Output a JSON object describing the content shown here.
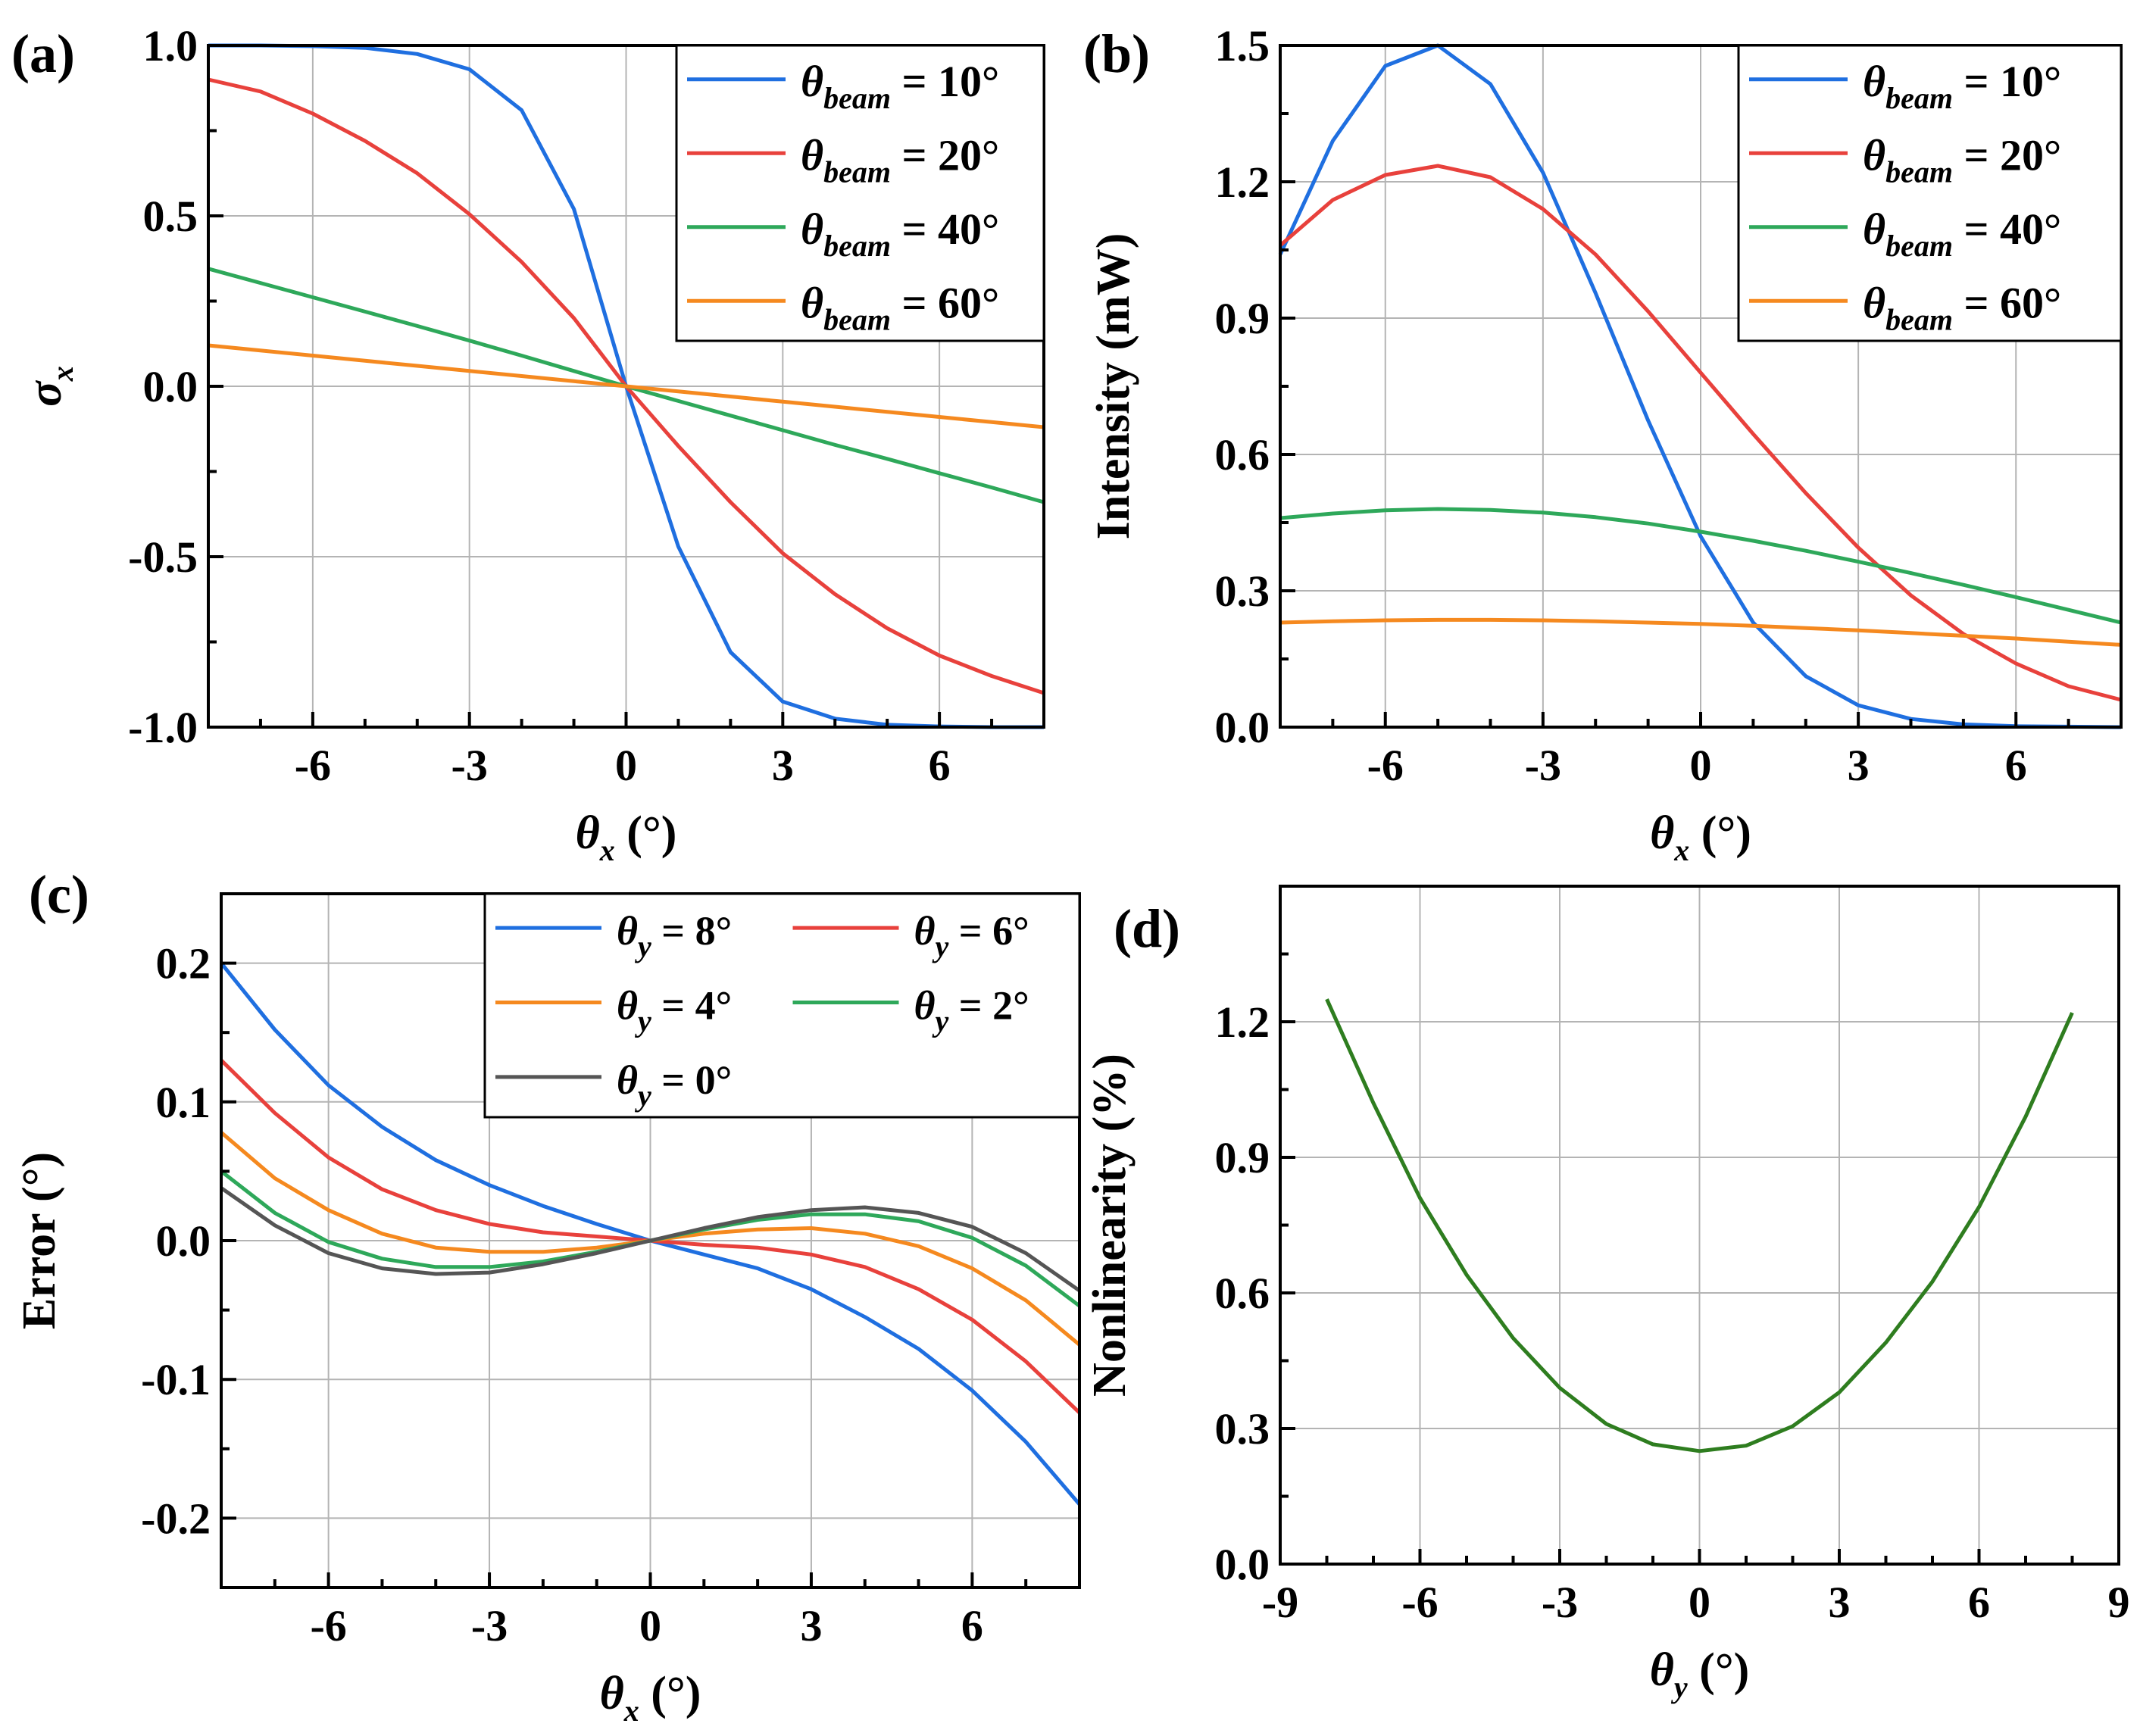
{
  "chart_data": [
    {
      "id": "a",
      "panel_label": "(a)",
      "type": "line",
      "xlabel": "θx (°)",
      "xlabel_parts": {
        "symbol": "θ",
        "subscript": "x",
        "unit": " (°)"
      },
      "ylabel": "σx",
      "ylabel_parts": {
        "symbol": "σ",
        "subscript": "x"
      },
      "xlim": [
        -8,
        8
      ],
      "ylim": [
        -1,
        1
      ],
      "xticks": [
        -6,
        -3,
        0,
        3,
        6
      ],
      "xtick_labels": [
        "-6",
        "-3",
        "0",
        "3",
        "6"
      ],
      "yticks": [
        -1,
        -0.5,
        0,
        0.5,
        1
      ],
      "ytick_labels": [
        "-1.0",
        "-0.5",
        "0.0",
        "0.5",
        "1.0"
      ],
      "grid": true,
      "legend_position": "top-right",
      "x": [
        -8,
        -7,
        -6,
        -5,
        -4,
        -3,
        -2,
        -1,
        0,
        1,
        2,
        3,
        4,
        5,
        6,
        7,
        8
      ],
      "series": [
        {
          "name": "θbeam = 10°",
          "label_symbol": "θ",
          "label_sub": "beam",
          "label_rest": " = 10°",
          "color": "#1f6fe0",
          "values": [
            1.0,
            1.0,
            0.998,
            0.993,
            0.975,
            0.93,
            0.81,
            0.52,
            0,
            -0.47,
            -0.78,
            -0.925,
            -0.975,
            -0.993,
            -0.998,
            -1.0,
            -1.0
          ]
        },
        {
          "name": "θbeam = 20°",
          "label_symbol": "θ",
          "label_sub": "beam",
          "label_rest": " = 20°",
          "color": "#e8413c",
          "values": [
            0.9,
            0.865,
            0.8,
            0.72,
            0.625,
            0.505,
            0.365,
            0.2,
            0,
            -0.175,
            -0.34,
            -0.49,
            -0.61,
            -0.71,
            -0.79,
            -0.85,
            -0.9
          ]
        },
        {
          "name": "θbeam = 40°",
          "label_symbol": "θ",
          "label_sub": "beam",
          "label_rest": " = 40°",
          "color": "#2ea85a",
          "values": [
            0.345,
            0.303,
            0.261,
            0.219,
            0.177,
            0.134,
            0.09,
            0.045,
            0,
            -0.043,
            -0.086,
            -0.129,
            -0.172,
            -0.213,
            -0.255,
            -0.297,
            -0.34
          ]
        },
        {
          "name": "θbeam = 60°",
          "label_symbol": "θ",
          "label_sub": "beam",
          "label_rest": " = 60°",
          "color": "#f5891f",
          "values": [
            0.12,
            0.105,
            0.09,
            0.075,
            0.06,
            0.045,
            0.03,
            0.015,
            0,
            -0.015,
            -0.03,
            -0.045,
            -0.06,
            -0.075,
            -0.09,
            -0.105,
            -0.12
          ]
        }
      ]
    },
    {
      "id": "b",
      "panel_label": "(b)",
      "type": "line",
      "xlabel": "θx (°)",
      "xlabel_parts": {
        "symbol": "θ",
        "subscript": "x",
        "unit": " (°)"
      },
      "ylabel": "Intensity (mW)",
      "xlim": [
        -8,
        8
      ],
      "ylim": [
        0,
        1.5
      ],
      "xticks": [
        -6,
        -3,
        0,
        3,
        6
      ],
      "xtick_labels": [
        "-6",
        "-3",
        "0",
        "3",
        "6"
      ],
      "yticks": [
        0,
        0.3,
        0.6,
        0.9,
        1.2,
        1.5
      ],
      "ytick_labels": [
        "0.0",
        "0.3",
        "0.6",
        "0.9",
        "1.2",
        "1.5"
      ],
      "grid": true,
      "legend_position": "top-right",
      "x": [
        -8,
        -7,
        -6,
        -5,
        -4,
        -3,
        -2,
        -1,
        0,
        1,
        2,
        3,
        4,
        5,
        6,
        7,
        8
      ],
      "series": [
        {
          "name": "θbeam = 10°",
          "label_symbol": "θ",
          "label_sub": "beam",
          "label_rest": " = 10°",
          "color": "#1f6fe0",
          "values": [
            1.04,
            1.29,
            1.455,
            1.5,
            1.415,
            1.22,
            0.955,
            0.675,
            0.42,
            0.23,
            0.112,
            0.048,
            0.018,
            0.006,
            0.002,
            0.001,
            0.0
          ]
        },
        {
          "name": "θbeam = 20°",
          "label_symbol": "θ",
          "label_sub": "beam",
          "label_rest": " = 20°",
          "color": "#e8413c",
          "values": [
            1.06,
            1.16,
            1.215,
            1.235,
            1.21,
            1.14,
            1.04,
            0.915,
            0.78,
            0.645,
            0.515,
            0.395,
            0.29,
            0.205,
            0.14,
            0.09,
            0.06
          ]
        },
        {
          "name": "θbeam = 40°",
          "label_symbol": "θ",
          "label_sub": "beam",
          "label_rest": " = 40°",
          "color": "#2ea85a",
          "values": [
            0.46,
            0.47,
            0.477,
            0.48,
            0.478,
            0.472,
            0.462,
            0.448,
            0.43,
            0.41,
            0.388,
            0.364,
            0.339,
            0.313,
            0.286,
            0.258,
            0.23
          ]
        },
        {
          "name": "θbeam = 60°",
          "label_symbol": "θ",
          "label_sub": "beam",
          "label_rest": " = 60°",
          "color": "#f5891f",
          "values": [
            0.23,
            0.233,
            0.235,
            0.236,
            0.236,
            0.235,
            0.233,
            0.23,
            0.227,
            0.223,
            0.218,
            0.213,
            0.207,
            0.201,
            0.195,
            0.188,
            0.181
          ]
        }
      ]
    },
    {
      "id": "c",
      "panel_label": "(c)",
      "type": "line",
      "xlabel": "θx (°)",
      "xlabel_parts": {
        "symbol": "θ",
        "subscript": "x",
        "unit": " (°)"
      },
      "ylabel": "Error (°)",
      "xlim": [
        -8,
        8
      ],
      "ylim": [
        -0.25,
        0.25
      ],
      "xticks": [
        -6,
        -3,
        0,
        3,
        6
      ],
      "xtick_labels": [
        "-6",
        "-3",
        "0",
        "3",
        "6"
      ],
      "yticks": [
        -0.2,
        -0.1,
        0,
        0.1,
        0.2
      ],
      "ytick_labels": [
        "-0.2",
        "-0.1",
        "0.0",
        "0.1",
        "0.2"
      ],
      "grid": true,
      "legend_position": "top-right",
      "x": [
        -8,
        -7,
        -6,
        -5,
        -4,
        -3,
        -2,
        -1,
        0,
        1,
        2,
        3,
        4,
        5,
        6,
        7,
        8
      ],
      "series": [
        {
          "name": "θy = 8°",
          "label_symbol": "θ",
          "label_sub": "y",
          "label_rest": " = 8°",
          "color": "#1f6fe0",
          "values": [
            0.2,
            0.152,
            0.112,
            0.082,
            0.058,
            0.04,
            0.025,
            0.012,
            0,
            -0.01,
            -0.02,
            -0.035,
            -0.055,
            -0.078,
            -0.108,
            -0.145,
            -0.19
          ]
        },
        {
          "name": "θy = 6°",
          "label_symbol": "θ",
          "label_sub": "y",
          "label_rest": " = 6°",
          "color": "#e8413c",
          "values": [
            0.13,
            0.092,
            0.06,
            0.037,
            0.022,
            0.012,
            0.006,
            0.003,
            0,
            -0.003,
            -0.005,
            -0.01,
            -0.019,
            -0.035,
            -0.057,
            -0.087,
            -0.124
          ]
        },
        {
          "name": "θy = 4°",
          "label_symbol": "θ",
          "label_sub": "y",
          "label_rest": " = 4°",
          "color": "#f5891f",
          "values": [
            0.078,
            0.045,
            0.022,
            0.005,
            -0.005,
            -0.008,
            -0.008,
            -0.005,
            0,
            0.005,
            0.008,
            0.009,
            0.005,
            -0.004,
            -0.02,
            -0.043,
            -0.075
          ]
        },
        {
          "name": "θy = 2°",
          "label_symbol": "θ",
          "label_sub": "y",
          "label_rest": " = 2°",
          "color": "#2ea85a",
          "values": [
            0.05,
            0.02,
            -0.001,
            -0.013,
            -0.019,
            -0.019,
            -0.015,
            -0.008,
            0,
            0.008,
            0.015,
            0.019,
            0.019,
            0.014,
            0.002,
            -0.018,
            -0.047
          ]
        },
        {
          "name": "θy = 0°",
          "label_symbol": "θ",
          "label_sub": "y",
          "label_rest": " = 0°",
          "color": "#555555",
          "values": [
            0.038,
            0.011,
            -0.009,
            -0.02,
            -0.024,
            -0.023,
            -0.017,
            -0.009,
            0,
            0.009,
            0.017,
            0.022,
            0.024,
            0.02,
            0.01,
            -0.009,
            -0.036
          ]
        }
      ]
    },
    {
      "id": "d",
      "panel_label": "(d)",
      "type": "line",
      "xlabel": "θy (°)",
      "xlabel_parts": {
        "symbol": "θ",
        "subscript": "y",
        "unit": " (°)"
      },
      "ylabel": "Nonlinearity (%)",
      "xlim": [
        -9,
        9
      ],
      "ylim": [
        0,
        1.5
      ],
      "xticks": [
        -9,
        -6,
        -3,
        0,
        3,
        6,
        9
      ],
      "xtick_labels": [
        "-9",
        "-6",
        "-3",
        "0",
        "3",
        "6",
        "9"
      ],
      "yticks": [
        0,
        0.3,
        0.6,
        0.9,
        1.2
      ],
      "ytick_labels": [
        "0.0",
        "0.3",
        "0.6",
        "0.9",
        "1.2"
      ],
      "grid": true,
      "legend_position": "none",
      "x": [
        -8,
        -7,
        -6,
        -5,
        -4,
        -3,
        -2,
        -1,
        0,
        1,
        2,
        3,
        4,
        5,
        6,
        7,
        8
      ],
      "series": [
        {
          "name": "Nonlinearity",
          "color": "#2e7d1f",
          "values": [
            1.25,
            1.02,
            0.81,
            0.64,
            0.5,
            0.39,
            0.31,
            0.265,
            0.25,
            0.262,
            0.305,
            0.38,
            0.49,
            0.625,
            0.79,
            0.99,
            1.22
          ]
        }
      ]
    }
  ]
}
